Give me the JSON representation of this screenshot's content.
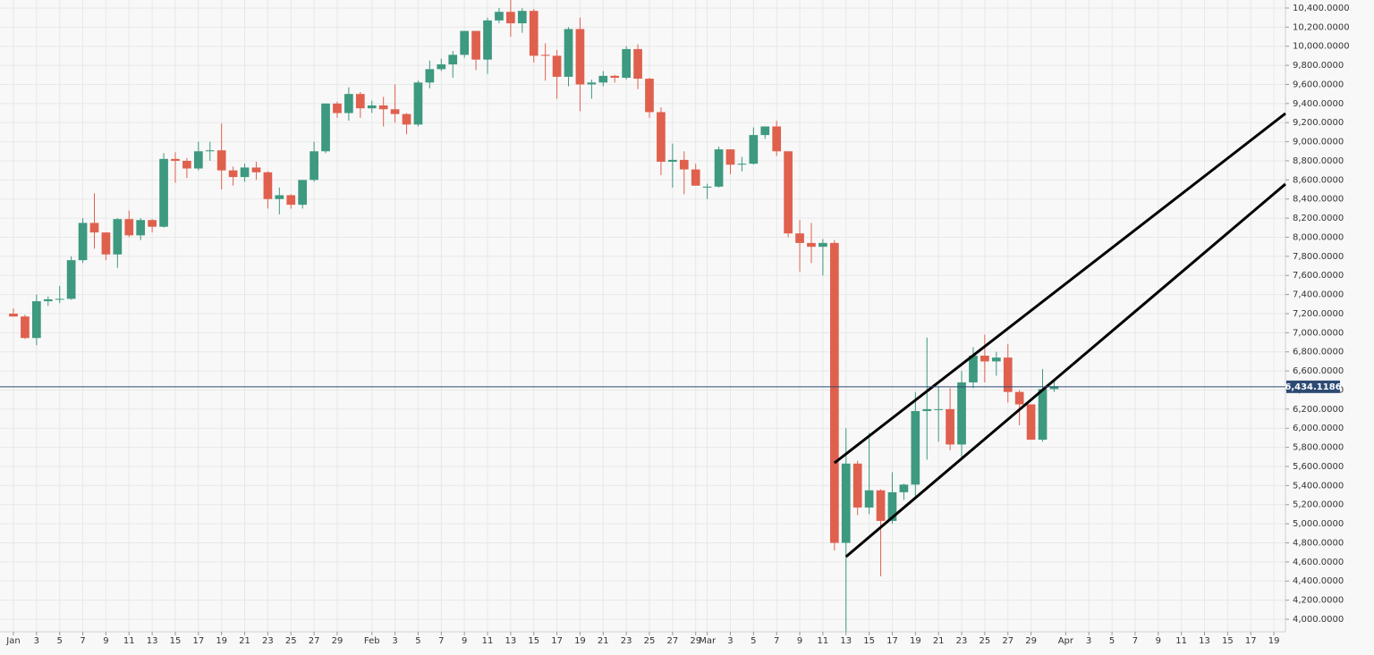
{
  "chart_data": {
    "type": "candlestick",
    "colors": {
      "up": "#3d9980",
      "down": "#e0604e",
      "price_line": "#2c4a73"
    },
    "grid": true,
    "x": [
      1,
      2,
      3,
      4,
      5,
      6,
      7,
      8,
      9,
      10,
      11,
      12,
      13,
      14,
      15,
      16,
      17,
      18,
      19,
      20,
      21,
      22,
      23,
      24,
      25,
      26,
      27,
      28,
      29,
      30,
      31,
      32,
      33,
      34,
      35,
      36,
      37,
      38,
      39,
      40,
      41,
      42,
      43,
      44,
      45,
      46,
      47,
      48,
      49,
      50,
      51,
      52,
      53,
      54,
      55,
      56,
      57,
      58,
      59,
      60,
      61,
      62,
      63,
      64,
      65,
      66,
      67,
      68,
      69,
      70,
      71,
      72,
      73,
      74,
      75,
      76,
      77,
      78,
      79,
      80,
      81,
      82,
      83,
      84,
      85,
      86,
      87,
      88,
      89,
      90,
      91
    ],
    "open": [
      7200,
      7170,
      6945,
      7330,
      7350,
      7355,
      7760,
      8150,
      8050,
      7820,
      8190,
      8020,
      8180,
      8110,
      8820,
      8800,
      8720,
      8900,
      8910,
      8700,
      8630,
      8730,
      8680,
      8400,
      8440,
      8340,
      8600,
      8900,
      9400,
      9300,
      9500,
      9350,
      9380,
      9340,
      9290,
      9180,
      9620,
      9760,
      9810,
      9910,
      10160,
      9860,
      10270,
      10360,
      10240,
      10370,
      9910,
      9900,
      9680,
      10180,
      9600,
      9620,
      9690,
      9670,
      9970,
      9660,
      9310,
      8790,
      8810,
      8710,
      8520,
      8530,
      8920,
      8760,
      8770,
      9070,
      9160,
      8900,
      8040,
      7940,
      7900,
      7940,
      4800,
      5630,
      5170,
      5350,
      5030,
      5330,
      5410,
      6180,
      6200,
      6200,
      5830,
      6480,
      6760,
      6700,
      6740,
      6380,
      6250,
      5880,
      6410
    ],
    "high": [
      7255,
      7190,
      7400,
      7380,
      7490,
      7800,
      8200,
      8460,
      8050,
      8200,
      8280,
      8200,
      8190,
      8880,
      8890,
      8830,
      9000,
      9000,
      9190,
      8740,
      8770,
      8790,
      8690,
      8520,
      8450,
      8600,
      9000,
      9400,
      9420,
      9570,
      9520,
      9430,
      9470,
      9600,
      9300,
      9640,
      9850,
      9870,
      9950,
      10160,
      10160,
      10300,
      10400,
      10500,
      10400,
      10390,
      10030,
      9960,
      10200,
      10300,
      9650,
      9740,
      9700,
      10000,
      10020,
      9670,
      9360,
      8980,
      8900,
      8770,
      8560,
      8950,
      8920,
      8840,
      9150,
      9160,
      9220,
      8900,
      8180,
      8150,
      7980,
      7970,
      6000,
      5660,
      5950,
      5360,
      5540,
      5420,
      6380,
      6950,
      6440,
      6420,
      6600,
      6850,
      6980,
      6800,
      6880,
      6400,
      6250,
      6620,
      6500
    ],
    "low": [
      7170,
      6935,
      6870,
      7280,
      7310,
      7345,
      7730,
      7880,
      7760,
      7680,
      8000,
      7970,
      8050,
      8100,
      8570,
      8620,
      8700,
      8800,
      8500,
      8540,
      8580,
      8600,
      8300,
      8240,
      8300,
      8300,
      8580,
      8880,
      9250,
      9220,
      9250,
      9300,
      9160,
      9200,
      9080,
      9160,
      9560,
      9740,
      9670,
      9880,
      9750,
      9710,
      10240,
      10100,
      10140,
      9830,
      9640,
      9450,
      9580,
      9320,
      9450,
      9580,
      9620,
      9650,
      9550,
      9250,
      8650,
      8520,
      8450,
      8540,
      8400,
      8520,
      8660,
      8690,
      8760,
      9030,
      8850,
      8000,
      7640,
      7730,
      7600,
      4720,
      3870,
      5090,
      5100,
      4450,
      5000,
      5250,
      5270,
      5670,
      5860,
      5770,
      5690,
      6420,
      6480,
      6550,
      6270,
      6030,
      5880,
      5860,
      6380
    ],
    "close": [
      7170,
      6945,
      7330,
      7350,
      7355,
      7760,
      8150,
      8050,
      7820,
      8190,
      8020,
      8180,
      8110,
      8820,
      8800,
      8720,
      8900,
      8910,
      8700,
      8630,
      8730,
      8680,
      8400,
      8440,
      8340,
      8600,
      8900,
      9400,
      9300,
      9500,
      9350,
      9380,
      9340,
      9290,
      9180,
      9620,
      9760,
      9810,
      9910,
      10160,
      9860,
      10270,
      10360,
      10240,
      10370,
      9900,
      9900,
      9680,
      10180,
      9600,
      9620,
      9690,
      9670,
      9970,
      9660,
      9310,
      8790,
      8810,
      8710,
      8540,
      8530,
      8920,
      8760,
      8770,
      9070,
      9160,
      8900,
      8040,
      7940,
      7900,
      7940,
      4800,
      5630,
      5170,
      5350,
      5030,
      5330,
      5410,
      6180,
      6200,
      6200,
      5830,
      6480,
      6760,
      6700,
      6740,
      6380,
      6250,
      5880,
      6410,
      6440
    ],
    "xlim": [
      -0.16,
      111
    ],
    "ylim": [
      3869,
      10484
    ],
    "xticks": [
      {
        "value": 1,
        "label": "Jan"
      },
      {
        "value": 3,
        "label": "3"
      },
      {
        "value": 5,
        "label": "5"
      },
      {
        "value": 7,
        "label": "7"
      },
      {
        "value": 9,
        "label": "9"
      },
      {
        "value": 11,
        "label": "11"
      },
      {
        "value": 13,
        "label": "13"
      },
      {
        "value": 15,
        "label": "15"
      },
      {
        "value": 17,
        "label": "17"
      },
      {
        "value": 19,
        "label": "19"
      },
      {
        "value": 21,
        "label": "21"
      },
      {
        "value": 23,
        "label": "23"
      },
      {
        "value": 25,
        "label": "25"
      },
      {
        "value": 27,
        "label": "27"
      },
      {
        "value": 29,
        "label": "29"
      },
      {
        "value": 32,
        "label": "Feb"
      },
      {
        "value": 34,
        "label": "3"
      },
      {
        "value": 36,
        "label": "5"
      },
      {
        "value": 38,
        "label": "7"
      },
      {
        "value": 40,
        "label": "9"
      },
      {
        "value": 42,
        "label": "11"
      },
      {
        "value": 44,
        "label": "13"
      },
      {
        "value": 46,
        "label": "15"
      },
      {
        "value": 48,
        "label": "17"
      },
      {
        "value": 50,
        "label": "19"
      },
      {
        "value": 52,
        "label": "21"
      },
      {
        "value": 54,
        "label": "23"
      },
      {
        "value": 56,
        "label": "25"
      },
      {
        "value": 58,
        "label": "27"
      },
      {
        "value": 60,
        "label": "29"
      },
      {
        "value": 61,
        "label": "Mar"
      },
      {
        "value": 63,
        "label": "3"
      },
      {
        "value": 65,
        "label": "5"
      },
      {
        "value": 67,
        "label": "7"
      },
      {
        "value": 69,
        "label": "9"
      },
      {
        "value": 71,
        "label": "11"
      },
      {
        "value": 73,
        "label": "13"
      },
      {
        "value": 75,
        "label": "15"
      },
      {
        "value": 77,
        "label": "17"
      },
      {
        "value": 79,
        "label": "19"
      },
      {
        "value": 81,
        "label": "21"
      },
      {
        "value": 83,
        "label": "23"
      },
      {
        "value": 85,
        "label": "25"
      },
      {
        "value": 87,
        "label": "27"
      },
      {
        "value": 89,
        "label": "29"
      },
      {
        "value": 92,
        "label": "Apr"
      },
      {
        "value": 94,
        "label": "3"
      },
      {
        "value": 96,
        "label": "5"
      },
      {
        "value": 98,
        "label": "7"
      },
      {
        "value": 100,
        "label": "9"
      },
      {
        "value": 102,
        "label": "11"
      },
      {
        "value": 104,
        "label": "13"
      },
      {
        "value": 106,
        "label": "15"
      },
      {
        "value": 108,
        "label": "17"
      },
      {
        "value": 110,
        "label": "19"
      }
    ],
    "yticks": [
      {
        "value": 4000,
        "label": "4,000.0000"
      },
      {
        "value": 4200,
        "label": "4,200.0000"
      },
      {
        "value": 4400,
        "label": "4,400.0000"
      },
      {
        "value": 4600,
        "label": "4,600.0000"
      },
      {
        "value": 4800,
        "label": "4,800.0000"
      },
      {
        "value": 5000,
        "label": "5,000.0000"
      },
      {
        "value": 5200,
        "label": "5,200.0000"
      },
      {
        "value": 5400,
        "label": "5,400.0000"
      },
      {
        "value": 5600,
        "label": "5,600.0000"
      },
      {
        "value": 5800,
        "label": "5,800.0000"
      },
      {
        "value": 6000,
        "label": "6,000.0000"
      },
      {
        "value": 6200,
        "label": "6,200.0000"
      },
      {
        "value": 6400,
        "label": "6,400.0000"
      },
      {
        "value": 6600,
        "label": "6,600.0000"
      },
      {
        "value": 6800,
        "label": "6,800.0000"
      },
      {
        "value": 7000,
        "label": "7,000.0000"
      },
      {
        "value": 7200,
        "label": "7,200.0000"
      },
      {
        "value": 7400,
        "label": "7,400.0000"
      },
      {
        "value": 7600,
        "label": "7,600.0000"
      },
      {
        "value": 7800,
        "label": "7,800.0000"
      },
      {
        "value": 8000,
        "label": "8,000.0000"
      },
      {
        "value": 8200,
        "label": "8,200.0000"
      },
      {
        "value": 8400,
        "label": "8,400.0000"
      },
      {
        "value": 8600,
        "label": "8,600.0000"
      },
      {
        "value": 8800,
        "label": "8,800.0000"
      },
      {
        "value": 9000,
        "label": "9,000.0000"
      },
      {
        "value": 9200,
        "label": "9,200.0000"
      },
      {
        "value": 9400,
        "label": "9,400.0000"
      },
      {
        "value": 9600,
        "label": "9,600.0000"
      },
      {
        "value": 9800,
        "label": "9,800.0000"
      },
      {
        "value": 10000,
        "label": "10,000.0000"
      },
      {
        "value": 10200,
        "label": "10,200.0000"
      },
      {
        "value": 10400,
        "label": "10,400.0000"
      }
    ],
    "last_price": {
      "value": 6434.1186,
      "label": "6,434.1186"
    },
    "trend_lines": [
      {
        "x": [
          72,
          111
        ],
        "y": [
          5637,
          9296
        ]
      },
      {
        "x": [
          73,
          111
        ],
        "y": [
          4655,
          8557
        ]
      }
    ]
  }
}
